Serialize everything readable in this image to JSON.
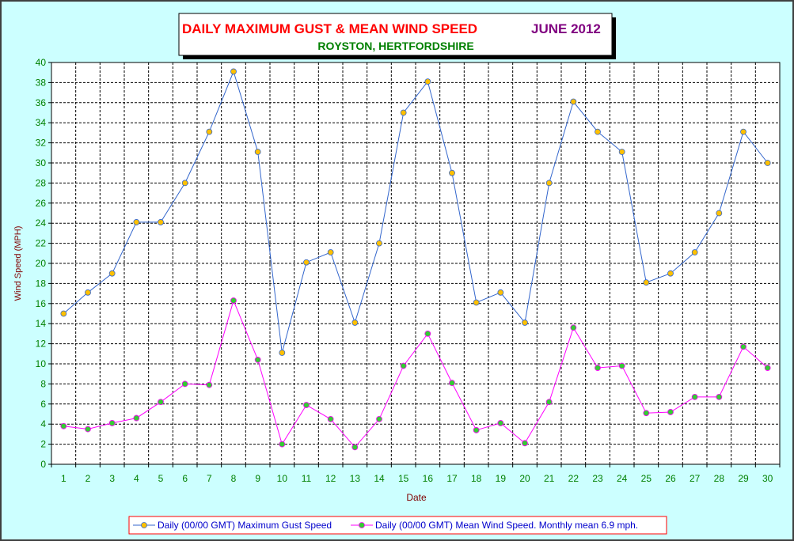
{
  "colors": {
    "background": "#ccffff",
    "plot_background": "#ffffff",
    "title_main": "#ff0000",
    "title_month": "#800080",
    "subtitle": "#008000",
    "axis_text": "#008000",
    "axis_label": "#800000",
    "gust_line": "#3366cc",
    "gust_marker_fill": "#ffc000",
    "mean_line": "#ff00ff",
    "mean_marker_fill": "#33cc33",
    "legend_text": "#0000cc",
    "legend_border": "#ff0000"
  },
  "chart_data": {
    "type": "line",
    "title": "DAILY MAXIMUM GUST & MEAN WIND SPEED",
    "title_month": "JUNE 2012",
    "subtitle": "ROYSTON, HERTFORDSHIRE",
    "xlabel": "Date",
    "ylabel": "Wind Speed (MPH)",
    "x": [
      1,
      2,
      3,
      4,
      5,
      6,
      7,
      8,
      9,
      10,
      11,
      12,
      13,
      14,
      15,
      16,
      17,
      18,
      19,
      20,
      21,
      22,
      23,
      24,
      25,
      26,
      27,
      28,
      29,
      30
    ],
    "ylim": [
      0,
      40
    ],
    "ytick_step": 2,
    "grid": true,
    "legend_position": "bottom",
    "series": [
      {
        "name": "Daily (00/00 GMT) Maximum Gust Speed",
        "values": [
          15,
          17.1,
          19,
          24.1,
          24.1,
          28,
          33.1,
          39.1,
          31.1,
          11.1,
          20.1,
          21.1,
          14.1,
          22,
          35,
          38.1,
          29,
          16.1,
          17.1,
          14.1,
          28,
          36.1,
          33.1,
          31.1,
          18.1,
          19,
          21.1,
          25,
          33.1,
          30
        ]
      },
      {
        "name": "Daily (00/00 GMT) Mean Wind Speed. Monthly mean 6.9 mph.",
        "values": [
          3.8,
          3.5,
          4.1,
          4.6,
          6.2,
          8,
          7.9,
          16.3,
          10.4,
          2,
          5.9,
          4.5,
          1.7,
          4.5,
          9.8,
          13,
          8.1,
          3.4,
          4.1,
          2.1,
          6.2,
          13.6,
          9.6,
          9.8,
          5.1,
          5.2,
          6.7,
          6.7,
          11.7,
          9.6
        ]
      }
    ]
  }
}
